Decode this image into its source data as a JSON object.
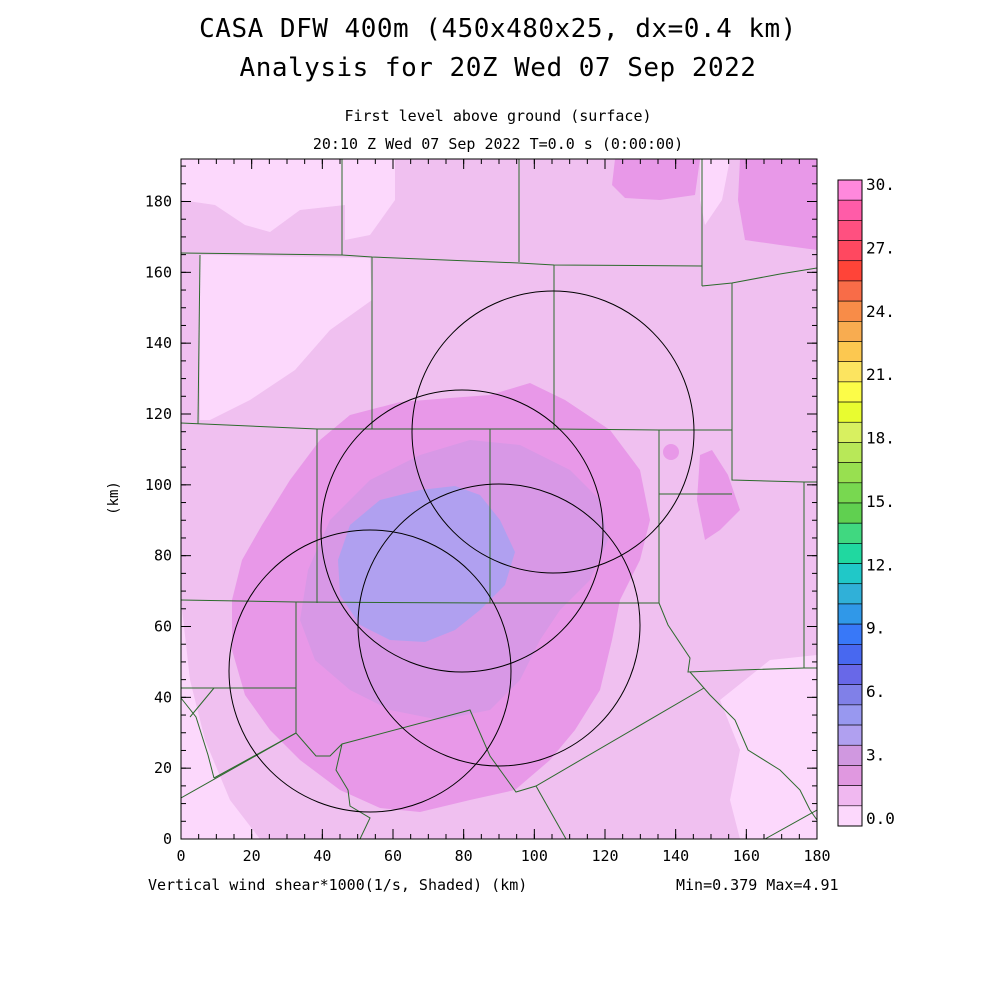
{
  "header": {
    "title_line1": "CASA DFW 400m (450x480x25, dx=0.4 km)",
    "title_line2": "Analysis for 20Z Wed 07 Sep 2022",
    "subtitle_line1": "First level above ground (surface)",
    "subtitle_line2": "20:10 Z Wed 07 Sep 2022   T=0.0 s (0:00:00)"
  },
  "footer": {
    "field_label": "Vertical wind shear*1000(1/s, Shaded)  (km)",
    "minmax": "Min=0.379 Max=4.91"
  },
  "axes": {
    "ylabel": "(km)",
    "x_ticks": [
      "0",
      "20",
      "40",
      "60",
      "80",
      "100",
      "120",
      "140",
      "160",
      "180"
    ],
    "y_ticks": [
      "0",
      "20",
      "40",
      "60",
      "80",
      "100",
      "120",
      "140",
      "160",
      "180"
    ]
  },
  "colorbar": {
    "labels": [
      "30.",
      "27.",
      "24.",
      "21.",
      "18.",
      "15.",
      "12.",
      "9.",
      "6.",
      "3.",
      "0.0"
    ],
    "colors": [
      "#ff88dd",
      "#ff5ca8",
      "#ff5080",
      "#ff4860",
      "#ff4438",
      "#f86c48",
      "#f88c48",
      "#f8ac50",
      "#fcc850",
      "#fce460",
      "#fcfc48",
      "#e8fc30",
      "#d8f060",
      "#b8e858",
      "#98e050",
      "#78d850",
      "#60d050",
      "#40d880",
      "#20d8a0",
      "#20c8c8",
      "#30b0d8",
      "#3098e8",
      "#3878f8",
      "#4868f0",
      "#6868e8",
      "#8080e8",
      "#9898f0",
      "#b0a0f0",
      "#d098e0",
      "#e098e0",
      "#f0b8f0",
      "#fcd8fc"
    ]
  },
  "chart_data": {
    "type": "heatmap",
    "variable": "Vertical wind shear*1000 (1/s)",
    "xlim": [
      0,
      180
    ],
    "ylim": [
      0,
      192
    ],
    "xlabel": "(km)",
    "ylabel": "(km)",
    "color_range": [
      0.0,
      30.0
    ],
    "color_interval": 0.9375,
    "min": 0.379,
    "max": 4.91,
    "radar_range_rings": [
      {
        "center_km": [
          105,
          115
        ],
        "radius_km": 40
      },
      {
        "center_km": [
          80,
          87
        ],
        "radius_km": 40
      },
      {
        "center_km": [
          54,
          47
        ],
        "radius_km": 40
      },
      {
        "center_km": [
          90,
          61
        ],
        "radius_km": 40
      }
    ]
  }
}
